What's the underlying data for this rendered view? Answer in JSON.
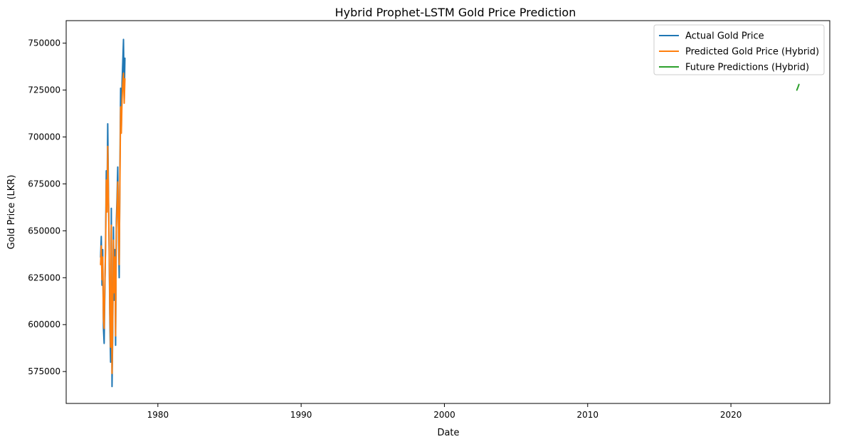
{
  "chart_data": {
    "type": "line",
    "title": "Hybrid Prophet-LSTM Gold Price Prediction",
    "xlabel": "Date",
    "ylabel": "Gold Price (LKR)",
    "xlim": [
      1973.6,
      2026.9
    ],
    "ylim": [
      558000,
      762000
    ],
    "xticks": [
      1980,
      1990,
      2000,
      2010,
      2020
    ],
    "yticks": [
      575000,
      600000,
      625000,
      650000,
      675000,
      700000,
      725000,
      750000
    ],
    "grid": false,
    "legend_position": "top-right",
    "series": [
      {
        "name": "Actual Gold Price",
        "color": "#1f77b4",
        "points": [
          [
            1976.0,
            636000
          ],
          [
            1976.05,
            647000
          ],
          [
            1976.1,
            621000
          ],
          [
            1976.15,
            640000
          ],
          [
            1976.2,
            598000
          ],
          [
            1976.25,
            590000
          ],
          [
            1976.3,
            618000
          ],
          [
            1976.35,
            645000
          ],
          [
            1976.4,
            682000
          ],
          [
            1976.45,
            664000
          ],
          [
            1976.5,
            707000
          ],
          [
            1976.55,
            672000
          ],
          [
            1976.6,
            640000
          ],
          [
            1976.65,
            601000
          ],
          [
            1976.7,
            580000
          ],
          [
            1976.75,
            662000
          ],
          [
            1976.8,
            567000
          ],
          [
            1976.85,
            596000
          ],
          [
            1976.9,
            652000
          ],
          [
            1976.95,
            613000
          ],
          [
            1977.0,
            640000
          ],
          [
            1977.05,
            589000
          ],
          [
            1977.1,
            655000
          ],
          [
            1977.15,
            668000
          ],
          [
            1977.2,
            684000
          ],
          [
            1977.25,
            648000
          ],
          [
            1977.3,
            625000
          ],
          [
            1977.35,
            681000
          ],
          [
            1977.4,
            726000
          ],
          [
            1977.45,
            705000
          ],
          [
            1977.5,
            729000
          ],
          [
            1977.55,
            740000
          ],
          [
            1977.6,
            752000
          ],
          [
            1977.65,
            720000
          ],
          [
            1977.7,
            742000
          ]
        ]
      },
      {
        "name": "Predicted Gold Price (Hybrid)",
        "color": "#ff7f0e",
        "points": [
          [
            1976.0,
            632000
          ],
          [
            1976.05,
            642000
          ],
          [
            1976.1,
            624000
          ],
          [
            1976.15,
            636000
          ],
          [
            1976.2,
            603000
          ],
          [
            1976.25,
            598000
          ],
          [
            1976.3,
            622000
          ],
          [
            1976.35,
            640000
          ],
          [
            1976.4,
            677000
          ],
          [
            1976.45,
            660000
          ],
          [
            1976.5,
            695000
          ],
          [
            1976.55,
            668000
          ],
          [
            1976.6,
            643000
          ],
          [
            1976.65,
            606000
          ],
          [
            1976.7,
            588000
          ],
          [
            1976.75,
            653000
          ],
          [
            1976.8,
            574000
          ],
          [
            1976.85,
            601000
          ],
          [
            1976.9,
            645000
          ],
          [
            1976.95,
            617000
          ],
          [
            1977.0,
            636000
          ],
          [
            1977.05,
            594000
          ],
          [
            1977.1,
            650000
          ],
          [
            1977.15,
            663000
          ],
          [
            1977.2,
            676000
          ],
          [
            1977.25,
            652000
          ],
          [
            1977.3,
            632000
          ],
          [
            1977.35,
            675000
          ],
          [
            1977.4,
            716000
          ],
          [
            1977.45,
            702000
          ],
          [
            1977.5,
            720000
          ],
          [
            1977.55,
            729000
          ],
          [
            1977.6,
            734000
          ],
          [
            1977.65,
            718000
          ],
          [
            1977.7,
            731000
          ]
        ]
      },
      {
        "name": "Future Predictions (Hybrid)",
        "color": "#2ca02c",
        "points": [
          [
            2024.6,
            725000
          ],
          [
            2024.68,
            726500
          ],
          [
            2024.75,
            728000
          ]
        ]
      }
    ]
  }
}
